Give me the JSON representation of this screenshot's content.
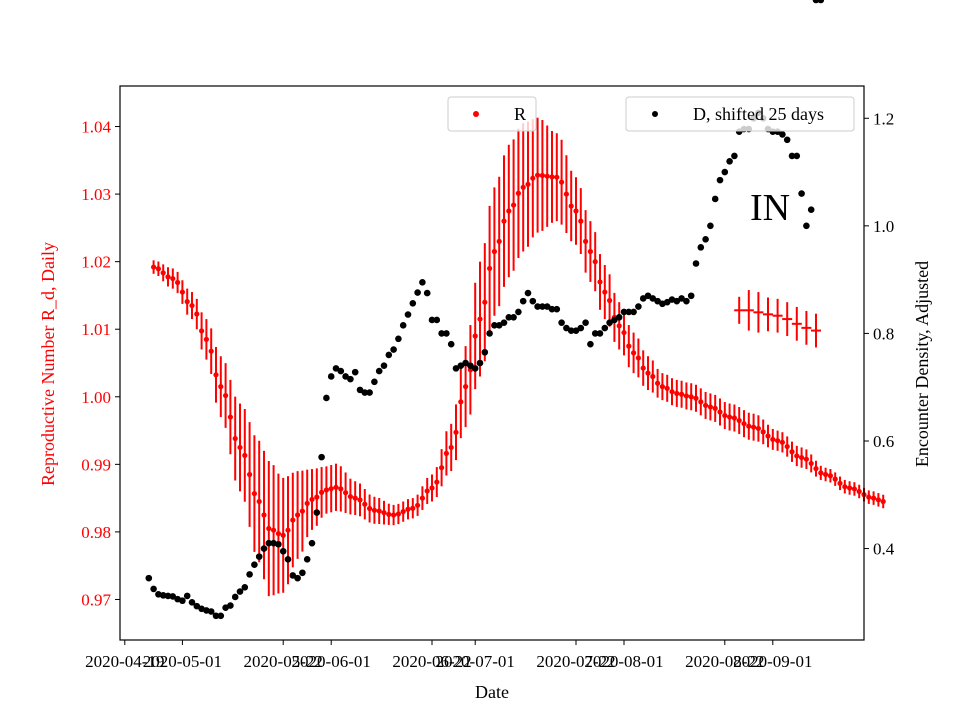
{
  "chart_data": {
    "type": "scatter",
    "xlabel": "Date",
    "ylabel_left": "Reproductive Number R_d, Daily",
    "ylabel_right": "Encounter Density, Adjusted",
    "annotation": "IN",
    "xlim": [
      "2020-04-18",
      "2020-09-20"
    ],
    "ylim_left": [
      0.964,
      1.046
    ],
    "ylim_right": [
      0.23,
      1.26
    ],
    "x_ticks": [
      "2020-04-19",
      "2020-05-01",
      "2020-05-22",
      "2020-06-01",
      "2020-06-22",
      "2020-07-01",
      "2020-07-22",
      "2020-08-01",
      "2020-08-22",
      "2020-09-01"
    ],
    "y_ticks_left": [
      "0.97",
      "0.98",
      "0.99",
      "1.00",
      "1.01",
      "1.02",
      "1.03",
      "1.04"
    ],
    "y_ticks_right": [
      "0.4",
      "0.6",
      "0.8",
      "1.0",
      "1.2"
    ],
    "legend": [
      {
        "label": "R",
        "color": "#ff0000",
        "placement": "upper-center"
      },
      {
        "label": "D, shifted 25 days",
        "color": "#000000",
        "placement": "upper-right"
      }
    ],
    "colors": {
      "R": "#ff0000",
      "D": "#000000",
      "left_axis": "#ff0000"
    },
    "series_R": {
      "name": "R",
      "axis": "left",
      "knots_day": [
        0,
        4,
        8,
        11,
        14,
        18,
        22,
        24,
        27,
        30,
        33,
        36,
        38,
        42,
        46,
        50,
        54,
        58,
        62,
        65,
        68,
        71,
        74,
        77,
        80,
        84,
        88,
        91,
        94,
        97,
        100,
        103,
        106,
        109,
        112,
        116,
        120,
        125,
        130,
        135,
        140,
        145,
        150,
        152
      ],
      "knots_R": [
        1.0192,
        1.0175,
        1.0135,
        1.0085,
        1.0015,
        0.9925,
        0.9845,
        0.9805,
        0.9795,
        0.9825,
        0.9848,
        0.9862,
        0.9866,
        0.985,
        0.9832,
        0.9825,
        0.9835,
        0.9865,
        0.9925,
        1.0015,
        1.0115,
        1.0215,
        1.0275,
        1.031,
        1.0328,
        1.0325,
        1.0275,
        1.0215,
        1.0155,
        1.0105,
        1.0065,
        1.0035,
        1.0015,
        1.0005,
        1.0,
        0.9985,
        0.997,
        0.9955,
        0.9935,
        0.991,
        0.9885,
        0.9865,
        0.985,
        0.9845
      ],
      "knots_err": [
        0.001,
        0.0015,
        0.002,
        0.003,
        0.0045,
        0.0065,
        0.009,
        0.01,
        0.0085,
        0.0065,
        0.0045,
        0.0035,
        0.0035,
        0.0025,
        0.002,
        0.0015,
        0.0015,
        0.002,
        0.0035,
        0.006,
        0.0085,
        0.0095,
        0.0098,
        0.0095,
        0.0085,
        0.0065,
        0.005,
        0.0045,
        0.004,
        0.0035,
        0.003,
        0.0025,
        0.002,
        0.002,
        0.002,
        0.002,
        0.002,
        0.002,
        0.0015,
        0.0015,
        0.001,
        0.001,
        0.001,
        0.001
      ],
      "extra_points": [
        {
          "day": 122,
          "R": 1.0128,
          "err": 0.002
        },
        {
          "day": 124,
          "R": 1.0128,
          "err": 0.003
        },
        {
          "day": 126,
          "R": 1.0125,
          "err": 0.003
        },
        {
          "day": 128,
          "R": 1.0122,
          "err": 0.0025
        },
        {
          "day": 130,
          "R": 1.012,
          "err": 0.0025
        },
        {
          "day": 132,
          "R": 1.0115,
          "err": 0.0025
        },
        {
          "day": 134,
          "R": 1.0108,
          "err": 0.0025
        },
        {
          "day": 136,
          "R": 1.0102,
          "err": 0.0025
        },
        {
          "day": 138,
          "R": 1.0098,
          "err": 0.0025
        }
      ]
    },
    "series_D": {
      "name": "D, shifted 25 days",
      "axis": "right",
      "day": [
        -1,
        0,
        1,
        2,
        3,
        4,
        5,
        6,
        7,
        8,
        9,
        10,
        11,
        12,
        13,
        14,
        15,
        16,
        17,
        18,
        19,
        20,
        21,
        22,
        23,
        24,
        25,
        26,
        27,
        28,
        29,
        30,
        31,
        32,
        33,
        34,
        35,
        36,
        37,
        38,
        39,
        40,
        41,
        42,
        43,
        44,
        45,
        46,
        47,
        48,
        49,
        50,
        51,
        52,
        53,
        54,
        55,
        56,
        57,
        58,
        59,
        60,
        61,
        62,
        63,
        64,
        65,
        66,
        67,
        68,
        69,
        70,
        71,
        72,
        73,
        74,
        75,
        76,
        77,
        78,
        79,
        80,
        81,
        82,
        83,
        84,
        85,
        86,
        87,
        88,
        89,
        90,
        91,
        92,
        93,
        94,
        95,
        96,
        97,
        98,
        99,
        100,
        101,
        102,
        103,
        104,
        105,
        106,
        107,
        108,
        109,
        110,
        111,
        112,
        113,
        114,
        115,
        116,
        117,
        118,
        119,
        120,
        121,
        122,
        123,
        124,
        125,
        126,
        127,
        128,
        129,
        130,
        131,
        132,
        133,
        134,
        135,
        136,
        137,
        138,
        139
      ],
      "values": [
        0.345,
        0.325,
        0.315,
        0.313,
        0.312,
        0.311,
        0.306,
        0.303,
        0.312,
        0.3,
        0.293,
        0.288,
        0.285,
        0.283,
        0.275,
        0.275,
        0.29,
        0.294,
        0.31,
        0.32,
        0.328,
        0.352,
        0.37,
        0.385,
        0.4,
        0.41,
        0.41,
        0.408,
        0.395,
        0.38,
        0.35,
        0.345,
        0.355,
        0.38,
        0.41,
        0.467,
        0.57,
        0.68,
        0.72,
        0.735,
        0.73,
        0.72,
        0.715,
        0.728,
        0.695,
        0.69,
        0.69,
        0.71,
        0.73,
        0.74,
        0.76,
        0.77,
        0.79,
        0.815,
        0.835,
        0.856,
        0.876,
        0.895,
        0.875,
        0.825,
        0.825,
        0.8,
        0.8,
        0.78,
        0.735,
        0.74,
        0.745,
        0.74,
        0.735,
        0.745,
        0.765,
        0.8,
        0.815,
        0.815,
        0.82,
        0.83,
        0.83,
        0.84,
        0.86,
        0.875,
        0.86,
        0.85,
        0.85,
        0.85,
        0.845,
        0.845,
        0.82,
        0.81,
        0.805,
        0.805,
        0.81,
        0.82,
        0.78,
        0.8,
        0.8,
        0.81,
        0.82,
        0.825,
        0.83,
        0.84,
        0.84,
        0.84,
        0.85,
        0.865,
        0.87,
        0.865,
        0.86,
        0.855,
        0.858,
        0.863,
        0.86,
        0.865,
        0.86,
        0.87,
        0.93,
        0.96,
        0.975,
        1.0,
        1.05,
        1.085,
        1.1,
        1.12,
        1.13,
        1.175,
        1.18,
        1.18,
        1.2,
        1.21,
        1.2,
        1.18,
        1.175,
        1.175,
        1.17,
        1.16,
        1.13,
        1.13,
        1.06,
        1.0,
        1.03
      ]
    }
  }
}
